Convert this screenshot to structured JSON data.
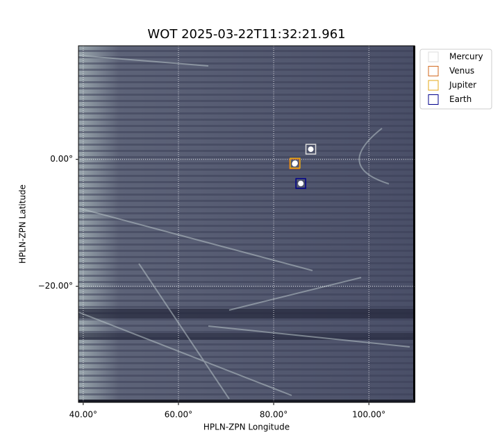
{
  "chart_data": {
    "type": "scatter",
    "title": "WOT 2025-03-22T11:32:21.961",
    "xlabel": "HPLN-ZPN Longitude",
    "ylabel": "HPLN-ZPN Latitude",
    "xlim": [
      39.0,
      109.6
    ],
    "ylim": [
      -38.3,
      17.9
    ],
    "xticks": [
      {
        "value": 40,
        "label": "40.00°"
      },
      {
        "value": 60,
        "label": "60.00°"
      },
      {
        "value": 80,
        "label": "80.00°"
      },
      {
        "value": 100,
        "label": "100.00°"
      }
    ],
    "yticks": [
      {
        "value": 0,
        "label": "0.00°"
      },
      {
        "value": -20,
        "label": "−20.00°"
      }
    ],
    "grid": true,
    "legend": "upper right",
    "series": [
      {
        "name": "Mercury",
        "color": "#dddddd",
        "x": [
          87.8
        ],
        "values": [
          1.6
        ]
      },
      {
        "name": "Venus",
        "color": "#d2691e",
        "x": [
          84.4
        ],
        "values": [
          -0.7
        ]
      },
      {
        "name": "Jupiter",
        "color": "#e6a817",
        "x": [
          84.5
        ],
        "values": [
          -0.6
        ]
      },
      {
        "name": "Earth",
        "color": "#00008b",
        "x": [
          85.7
        ],
        "values": [
          -3.8
        ]
      }
    ]
  }
}
